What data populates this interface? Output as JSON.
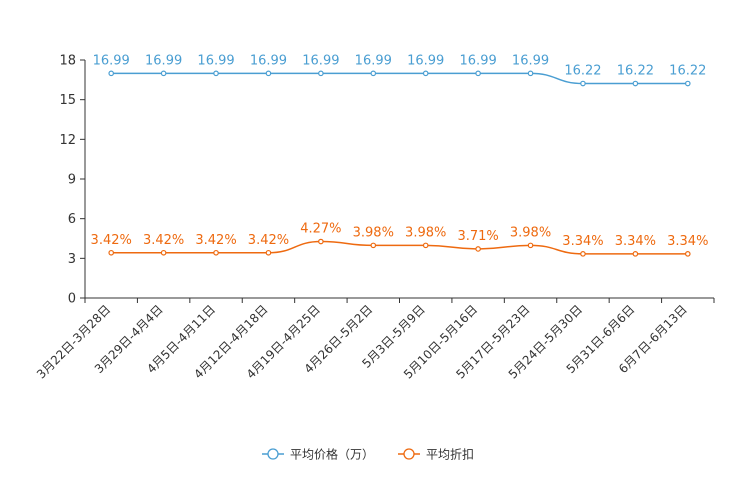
{
  "chart_data": {
    "type": "line",
    "categories": [
      "3月22日-3月28日",
      "3月29日-4月4日",
      "4月5日-4月11日",
      "4月12日-4月18日",
      "4月19日-4月25日",
      "4月26日-5月2日",
      "5月3日-5月9日",
      "5月10日-5月16日",
      "5月17日-5月23日",
      "5月24日-5月30日",
      "5月31日-6月6日",
      "6月7日-6月13日"
    ],
    "series": [
      {
        "name": "平均价格（万）",
        "color": "#4a9ed2",
        "values": [
          16.99,
          16.99,
          16.99,
          16.99,
          16.99,
          16.99,
          16.99,
          16.99,
          16.99,
          16.22,
          16.22,
          16.22
        ],
        "labels": [
          "16.99",
          "16.99",
          "16.99",
          "16.99",
          "16.99",
          "16.99",
          "16.99",
          "16.99",
          "16.99",
          "16.22",
          "16.22",
          "16.22"
        ]
      },
      {
        "name": "平均折扣",
        "color": "#ee6a10",
        "values": [
          3.42,
          3.42,
          3.42,
          3.42,
          4.27,
          3.98,
          3.98,
          3.71,
          3.98,
          3.34,
          3.34,
          3.34
        ],
        "labels": [
          "3.42%",
          "3.42%",
          "3.42%",
          "3.42%",
          "4.27%",
          "3.98%",
          "3.98%",
          "3.71%",
          "3.98%",
          "3.34%",
          "3.34%",
          "3.34%"
        ]
      }
    ],
    "ylim": [
      0,
      18
    ],
    "yticks": [
      0,
      3,
      6,
      9,
      12,
      15,
      18
    ],
    "title": "",
    "xlabel": "",
    "ylabel": "",
    "grid": false,
    "legend_position": "bottom-center"
  }
}
